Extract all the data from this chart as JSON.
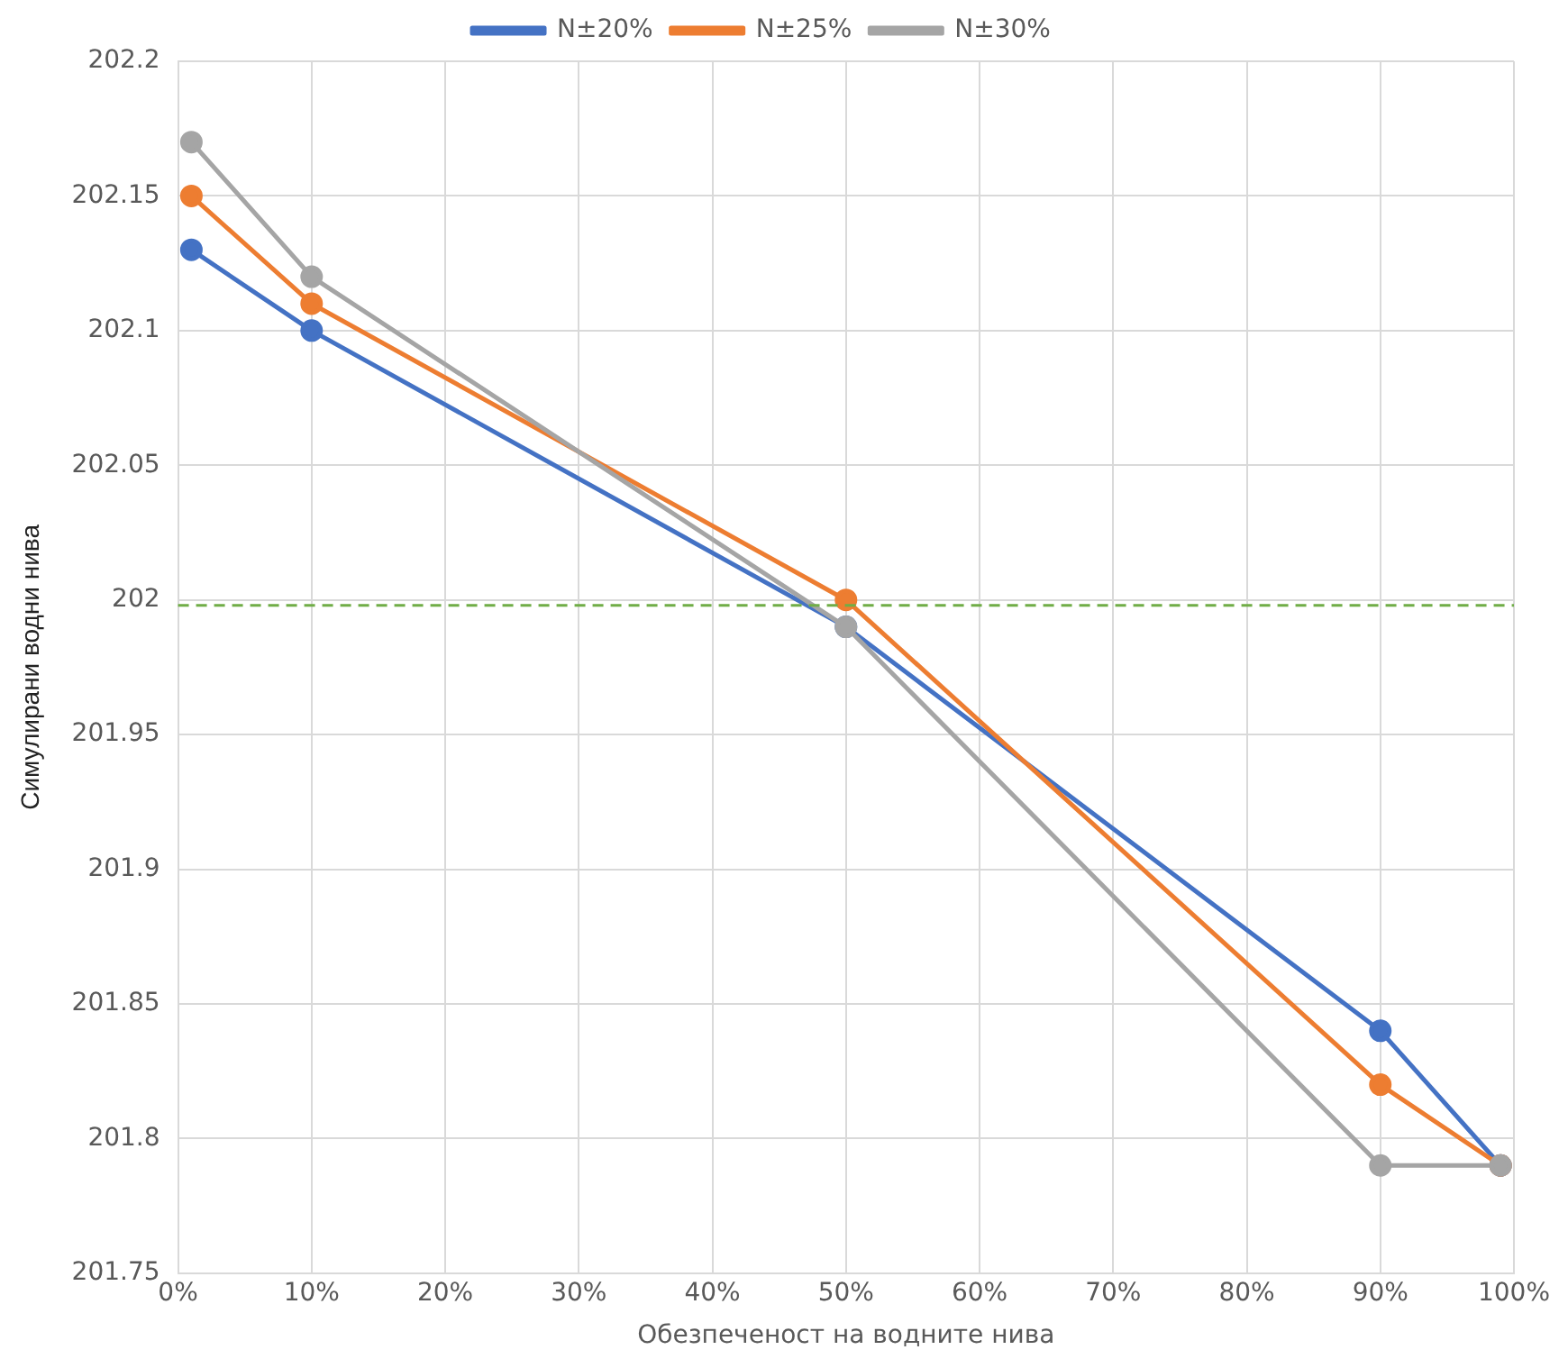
{
  "chart_data": {
    "type": "line",
    "xlabel": "Обезпеченост на водните нива",
    "ylabel": "Симулирани водни нива",
    "x": [
      1,
      10,
      50,
      90,
      99
    ],
    "series": [
      {
        "name": "N±20%",
        "color": "#4472c4",
        "values": [
          202.13,
          202.1,
          201.99,
          201.84,
          201.79
        ]
      },
      {
        "name": "N±25%",
        "color": "#ed7d31",
        "values": [
          202.15,
          202.11,
          202.0,
          201.82,
          201.79
        ]
      },
      {
        "name": "N±30%",
        "color": "#a5a5a5",
        "values": [
          202.17,
          202.12,
          201.99,
          201.79,
          201.79
        ]
      }
    ],
    "xlim": [
      0,
      100
    ],
    "xticks": [
      {
        "value": 0,
        "label": "0%"
      },
      {
        "value": 10,
        "label": "10%"
      },
      {
        "value": 20,
        "label": "20%"
      },
      {
        "value": 30,
        "label": "30%"
      },
      {
        "value": 40,
        "label": "40%"
      },
      {
        "value": 50,
        "label": "50%"
      },
      {
        "value": 60,
        "label": "60%"
      },
      {
        "value": 70,
        "label": "70%"
      },
      {
        "value": 80,
        "label": "80%"
      },
      {
        "value": 90,
        "label": "90%"
      },
      {
        "value": 100,
        "label": "100%"
      }
    ],
    "ylim": [
      201.75,
      202.2
    ],
    "yticks": [
      201.75,
      201.8,
      201.85,
      201.9,
      201.95,
      202,
      202.05,
      202.1,
      202.15,
      202.2
    ],
    "ref_lines": [
      {
        "axis": "y",
        "value": 201.998,
        "color": "#70ad47",
        "line_style": "dashed"
      }
    ],
    "grid": true,
    "legend": "top",
    "marker": "circle",
    "line_style": "solid"
  }
}
